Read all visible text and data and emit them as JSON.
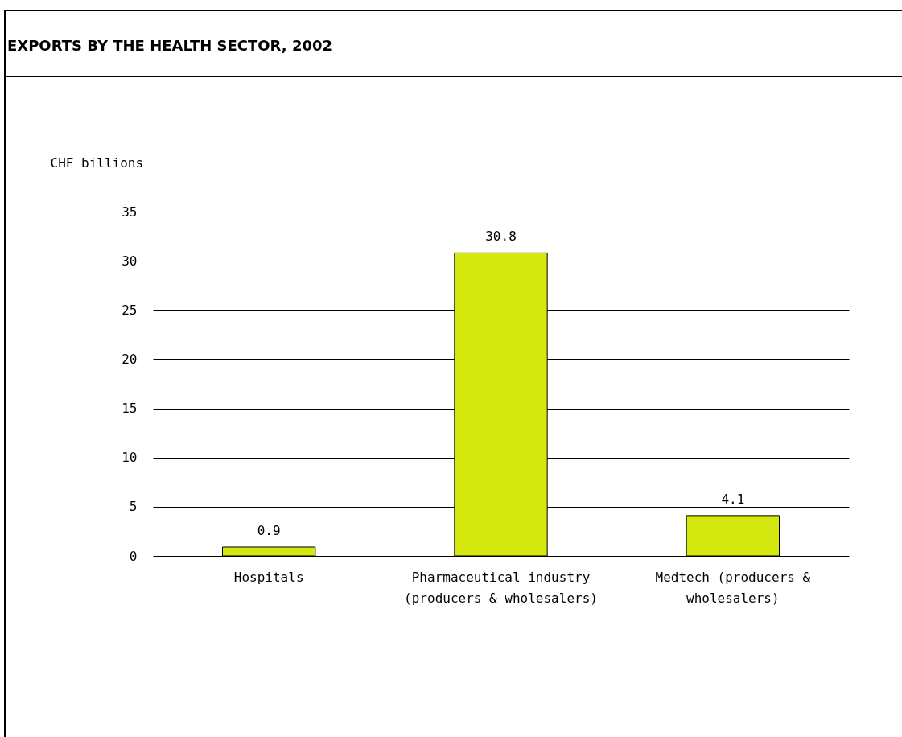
{
  "chart_data": {
    "type": "bar",
    "title": "EXPORTS BY THE HEALTH SECTOR, 2002",
    "ylabel": "CHF billions",
    "categories": [
      "Hospitals",
      "Pharmaceutical industry (producers & wholesalers)",
      "Medtech (producers & wholesalers)"
    ],
    "values": [
      0.9,
      30.8,
      4.1
    ],
    "color": "#d4e80f",
    "ylim": [
      0,
      35
    ],
    "yticks": [
      0,
      5,
      10,
      15,
      20,
      25,
      30,
      35
    ],
    "grid": "y",
    "data_labels": true
  }
}
